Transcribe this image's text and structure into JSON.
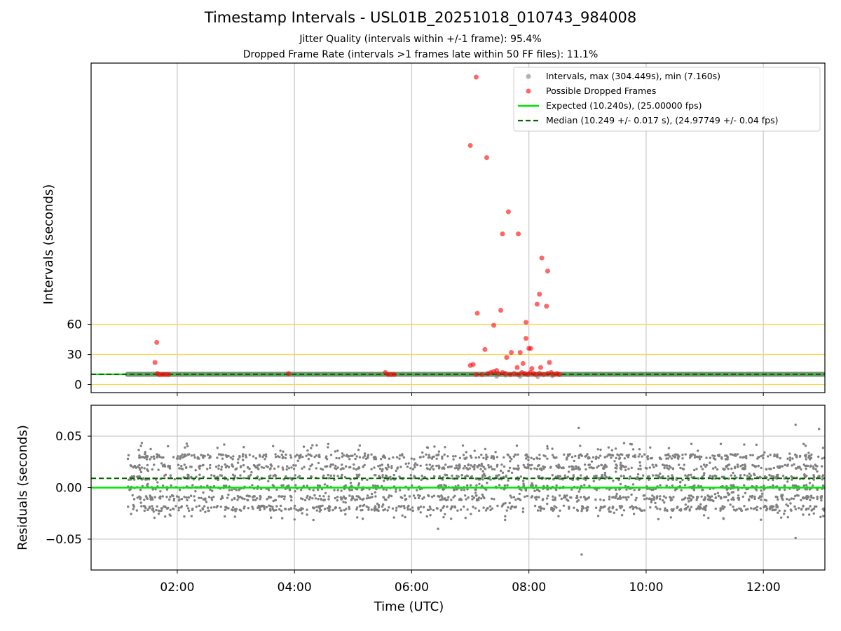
{
  "header": {
    "title": "Timestamp Intervals - USL01B_20251018_010743_984008",
    "subtitle1": "Jitter Quality (intervals within +/-1 frame): 95.4%",
    "subtitle2": "Dropped Frame Rate (intervals >1 frames late within 50 FF files): 11.1%"
  },
  "colors": {
    "intervals": "#808080",
    "dropped": "#ff0000",
    "expected": "#00e600",
    "median": "#006400",
    "threshold": "#ffd24d",
    "grid": "#c8c8c8"
  },
  "chart_data": [
    {
      "type": "scatter",
      "name": "intervals",
      "ylabel": "Intervals (seconds)",
      "xlim": [
        0.53,
        13.05
      ],
      "ylim": [
        -8,
        320
      ],
      "yticks": [
        0,
        30,
        60
      ],
      "ytick_labels": [
        "0",
        "30",
        "60"
      ],
      "xgrid": [
        2,
        4,
        6,
        8,
        10,
        12
      ],
      "threshold_lines": [
        0,
        30,
        60
      ],
      "interval_band": {
        "x_start": 1.15,
        "x_end": 13.05,
        "approx_value": 10.2
      },
      "legend": {
        "position": "top-right",
        "entries": [
          "Intervals, max (304.449s), min (7.160s)",
          "Possible Dropped Frames",
          "Expected (10.240s), (25.00000 fps)",
          "Median (10.249 +/- 0.017 s), (24.97749 +/- 0.04 fps)"
        ]
      },
      "expected": 10.24,
      "median": 10.249,
      "dropped_frames": [
        [
          1.65,
          42
        ],
        [
          1.62,
          22
        ],
        [
          1.66,
          11
        ],
        [
          1.7,
          10
        ],
        [
          1.75,
          10
        ],
        [
          1.8,
          10
        ],
        [
          1.85,
          10
        ],
        [
          3.9,
          11
        ],
        [
          5.55,
          12
        ],
        [
          5.6,
          10
        ],
        [
          5.65,
          10
        ],
        [
          5.7,
          10
        ],
        [
          7.0,
          238
        ],
        [
          7.1,
          306
        ],
        [
          7.28,
          226
        ],
        [
          7.65,
          172
        ],
        [
          7.82,
          150
        ],
        [
          7.55,
          150
        ],
        [
          8.22,
          126
        ],
        [
          8.32,
          113
        ],
        [
          8.18,
          90
        ],
        [
          8.14,
          80
        ],
        [
          8.3,
          78
        ],
        [
          7.12,
          71
        ],
        [
          7.52,
          74
        ],
        [
          7.4,
          59
        ],
        [
          7.95,
          62
        ],
        [
          7.95,
          46
        ],
        [
          8.0,
          36
        ],
        [
          8.03,
          36
        ],
        [
          7.05,
          20
        ],
        [
          7.0,
          19
        ],
        [
          7.25,
          35
        ],
        [
          7.7,
          32
        ],
        [
          7.85,
          32
        ],
        [
          7.62,
          27
        ],
        [
          8.35,
          22
        ],
        [
          7.9,
          21
        ],
        [
          8.2,
          17
        ],
        [
          7.8,
          17
        ],
        [
          8.05,
          16
        ],
        [
          7.45,
          14
        ],
        [
          7.1,
          10
        ],
        [
          7.2,
          10
        ],
        [
          7.3,
          11
        ],
        [
          7.35,
          12
        ],
        [
          7.4,
          13
        ],
        [
          7.48,
          11
        ],
        [
          7.55,
          12
        ],
        [
          7.6,
          11
        ],
        [
          7.68,
          10
        ],
        [
          7.75,
          11
        ],
        [
          7.82,
          10
        ],
        [
          7.88,
          12
        ],
        [
          7.93,
          11
        ],
        [
          7.98,
          10
        ],
        [
          8.02,
          12
        ],
        [
          8.08,
          11
        ],
        [
          8.12,
          10
        ],
        [
          8.18,
          11
        ],
        [
          8.25,
          10
        ],
        [
          8.32,
          11
        ],
        [
          8.38,
          12
        ],
        [
          8.42,
          10
        ],
        [
          8.48,
          11
        ],
        [
          8.52,
          10
        ]
      ]
    },
    {
      "type": "scatter",
      "name": "residuals",
      "xlabel": "Time (UTC)",
      "ylabel": "Residuals (seconds)",
      "xlim": [
        0.53,
        13.05
      ],
      "ylim": [
        -0.08,
        0.08
      ],
      "yticks": [
        -0.05,
        0.0,
        0.05
      ],
      "ytick_labels": [
        "−0.05",
        "0.00",
        "0.05"
      ],
      "xticks": [
        2,
        4,
        6,
        8,
        10,
        12
      ],
      "xtick_labels": [
        "02:00",
        "04:00",
        "06:00",
        "08:00",
        "10:00",
        "12:00"
      ],
      "x_range": [
        1.15,
        13.05
      ],
      "point_count": 2600,
      "bands": [
        0.03,
        0.02,
        0.01,
        0.0,
        -0.01,
        -0.02
      ],
      "expected_line": 0.0,
      "median_line": 0.009,
      "outliers": [
        [
          8.85,
          0.058
        ],
        [
          8.9,
          -0.065
        ],
        [
          12.55,
          0.061
        ],
        [
          12.55,
          -0.049
        ],
        [
          6.45,
          -0.04
        ],
        [
          12.95,
          0.057
        ]
      ]
    }
  ]
}
